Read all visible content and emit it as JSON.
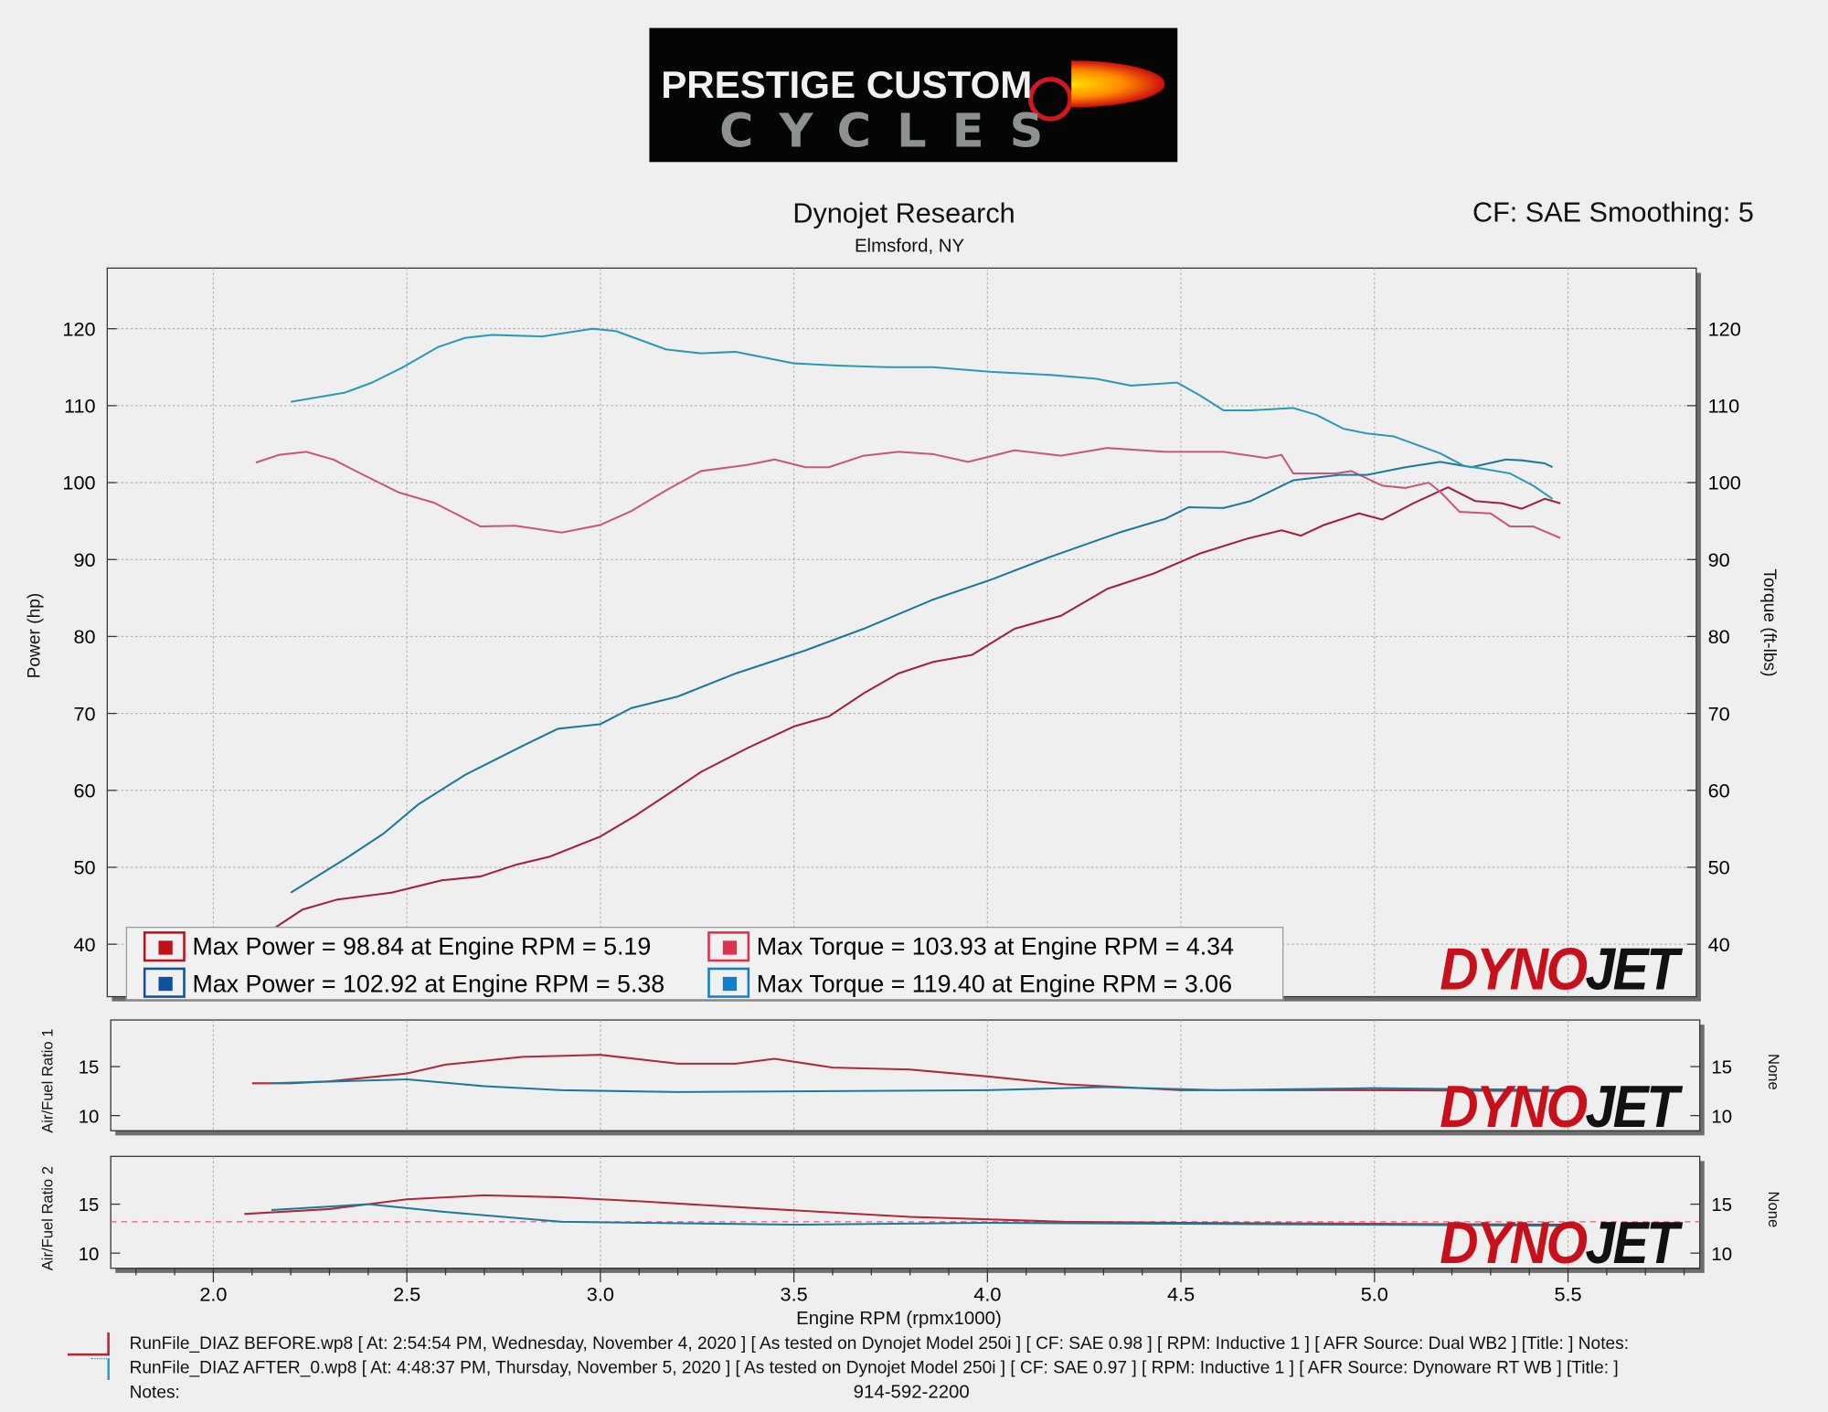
{
  "logo": {
    "line1": "PRESTIGE CUSTOM",
    "line2": "CYCLES"
  },
  "header": {
    "title": "Dynojet Research",
    "location": "Elmsford, NY",
    "cf": "CF: SAE Smoothing: 5"
  },
  "brand": {
    "d": "DYNO",
    "j": "JET",
    "mark": "®"
  },
  "colors": {
    "before_power": "#a3203c",
    "before_torque": "#c8587a",
    "after_power": "#1d7a96",
    "after_torque": "#2a9ab5",
    "grid": "#b8b8b8"
  },
  "legend": [
    {
      "text": "Max Power = 98.84 at Engine RPM = 5.19",
      "swatch": "#c0101a"
    },
    {
      "text": "Max Torque = 103.93 at Engine RPM = 4.34",
      "swatch": "#e03050"
    },
    {
      "text": "Max Power = 102.92 at Engine RPM = 5.38",
      "swatch": "#1050a0"
    },
    {
      "text": "Max Torque = 119.40 at Engine RPM = 3.06",
      "swatch": "#1080c8"
    }
  ],
  "footer": {
    "run1": "RunFile_DIAZ BEFORE.wp8 [ At: 2:54:54 PM, Wednesday, November 4, 2020 ] [ As tested on Dynojet Model 250i ] [ CF: SAE 0.98 ] [ RPM: Inductive 1 ] [ AFR Source: Dual WB2 ] [Title: ]  Notes:",
    "run2": "RunFile_DIAZ AFTER_0.wp8 [ At: 4:48:37 PM, Thursday, November 5, 2020 ] [ As tested on Dynojet Model 250i ] [ CF: SAE 0.97 ] [ RPM: Inductive 1 ] [ AFR Source: Dynoware RT WB ] [Title: ]",
    "notes": "Notes:",
    "phone": "914-592-2200"
  },
  "chart_data": [
    {
      "type": "line",
      "title": "Dynojet Research",
      "xlabel": "Engine RPM (rpmx1000)",
      "ylabel": "Power (hp)",
      "y2label": "Torque (ft-lbs)",
      "xlim": [
        1.73,
        5.83
      ],
      "ylim": [
        33.2,
        127.9
      ],
      "xticks": [
        "2.0",
        "2.5",
        "3.0",
        "3.5",
        "4.0",
        "4.5",
        "5.0",
        "5.5"
      ],
      "yticks": [
        "40",
        "50",
        "60",
        "70",
        "80",
        "90",
        "100",
        "110",
        "120"
      ],
      "grid": true,
      "legend_position": "bottom-left",
      "series": [
        {
          "name": "Before Power",
          "color": "#a3203c",
          "x": [
            2.1,
            2.14,
            2.23,
            2.32,
            2.46,
            2.59,
            2.69,
            2.78,
            2.87,
            3.0,
            3.09,
            3.18,
            3.26,
            3.38,
            3.5,
            3.59,
            3.68,
            3.77,
            3.86,
            3.96,
            4.07,
            4.19,
            4.31,
            4.43,
            4.55,
            4.67,
            4.76,
            4.81,
            4.87,
            4.96,
            5.02,
            5.1,
            5.19,
            5.26,
            5.33,
            5.38,
            5.44,
            5.48
          ],
          "y": [
            39.5,
            41.5,
            44.5,
            45.8,
            46.7,
            48.3,
            48.8,
            50.3,
            51.4,
            54,
            56.7,
            59.7,
            62.4,
            65.5,
            68.3,
            69.6,
            72.6,
            75.2,
            76.7,
            77.6,
            81,
            82.7,
            86.2,
            88.2,
            90.8,
            92.7,
            93.8,
            93.1,
            94.5,
            96,
            95.2,
            97.3,
            99.4,
            97.6,
            97.3,
            96.6,
            97.9,
            97.3
          ]
        },
        {
          "name": "Before Torque",
          "color": "#c8587a",
          "x": [
            2.11,
            2.17,
            2.24,
            2.31,
            2.38,
            2.48,
            2.57,
            2.69,
            2.78,
            2.9,
            3.0,
            3.08,
            3.17,
            3.26,
            3.38,
            3.45,
            3.53,
            3.59,
            3.68,
            3.77,
            3.86,
            3.95,
            4.07,
            4.19,
            4.31,
            4.46,
            4.61,
            4.72,
            4.76,
            4.79,
            4.9,
            4.94,
            5.02,
            5.08,
            5.14,
            5.17,
            5.22,
            5.3,
            5.35,
            5.41,
            5.48
          ],
          "y": [
            102.6,
            103.6,
            104,
            103,
            101.2,
            98.7,
            97.4,
            94.3,
            94.4,
            93.5,
            94.5,
            96.3,
            99,
            101.5,
            102.3,
            103,
            102,
            102,
            103.5,
            104,
            103.7,
            102.7,
            104.2,
            103.5,
            104.5,
            104,
            104,
            103.2,
            103.6,
            101.2,
            101.2,
            101.5,
            99.6,
            99.3,
            100,
            98.8,
            96.2,
            96,
            94.3,
            94.3,
            92.8
          ]
        },
        {
          "name": "After Power",
          "color": "#1d7a96",
          "x": [
            2.2,
            2.35,
            2.44,
            2.53,
            2.65,
            2.8,
            2.89,
            3.0,
            3.08,
            3.2,
            3.35,
            3.53,
            3.68,
            3.86,
            4.01,
            4.16,
            4.34,
            4.46,
            4.52,
            4.61,
            4.68,
            4.79,
            4.91,
            4.98,
            5.08,
            5.17,
            5.25,
            5.34,
            5.38,
            5.44,
            5.46
          ],
          "y": [
            46.7,
            51.4,
            54.4,
            58.2,
            62,
            65.8,
            68,
            68.6,
            70.7,
            72.2,
            75.2,
            78.2,
            81,
            84.8,
            87.4,
            90.3,
            93.5,
            95.3,
            96.8,
            96.7,
            97.6,
            100.3,
            101,
            101,
            102,
            102.7,
            102,
            103,
            102.9,
            102.5,
            102
          ]
        },
        {
          "name": "After Torque",
          "color": "#2a9ab5",
          "x": [
            2.2,
            2.34,
            2.41,
            2.49,
            2.58,
            2.65,
            2.72,
            2.85,
            2.98,
            3.04,
            3.17,
            3.26,
            3.35,
            3.5,
            3.62,
            3.74,
            3.86,
            4.01,
            4.16,
            4.28,
            4.37,
            4.49,
            4.55,
            4.61,
            4.68,
            4.79,
            4.85,
            4.92,
            4.98,
            5.05,
            5.17,
            5.23,
            5.28,
            5.35,
            5.41,
            5.46
          ],
          "y": [
            110.5,
            111.7,
            113,
            115,
            117.6,
            118.8,
            119.2,
            119,
            120,
            119.7,
            117.3,
            116.8,
            117,
            115.5,
            115.2,
            115,
            115,
            114.4,
            114,
            113.5,
            112.6,
            113,
            111.3,
            109.4,
            109.4,
            109.7,
            108.8,
            107,
            106.4,
            106,
            103.8,
            102.2,
            101.8,
            101.2,
            99.6,
            97.9
          ]
        }
      ]
    },
    {
      "type": "line",
      "ylabel": "Air/Fuel Ratio 1",
      "y2label": "None",
      "ylim": [
        8,
        19.5
      ],
      "yticks": [
        "10",
        "15"
      ],
      "series": [
        {
          "name": "Before AFR1",
          "color": "#b0283c",
          "x": [
            2.1,
            2.2,
            2.3,
            2.5,
            2.6,
            2.8,
            3.0,
            3.2,
            3.35,
            3.45,
            3.6,
            3.8,
            4.0,
            4.2,
            4.5,
            5.0,
            5.5
          ],
          "y": [
            13.3,
            13.3,
            13.5,
            14.3,
            15.2,
            16,
            16.2,
            15.3,
            15.3,
            15.8,
            14.9,
            14.7,
            14,
            13.2,
            12.6,
            12.6,
            12.5
          ]
        },
        {
          "name": "After AFR1",
          "color": "#1d7a96",
          "x": [
            2.15,
            2.5,
            2.7,
            2.9,
            3.2,
            3.6,
            4.0,
            4.3,
            4.6,
            5.0,
            5.5
          ],
          "y": [
            13.3,
            13.7,
            13,
            12.6,
            12.4,
            12.5,
            12.6,
            12.9,
            12.6,
            12.8,
            12.6
          ]
        }
      ]
    },
    {
      "type": "line",
      "ylabel": "Air/Fuel Ratio 2",
      "y2label": "None",
      "ylim": [
        8,
        19.5
      ],
      "yticks": [
        "10",
        "15"
      ],
      "series": [
        {
          "name": "Before AFR2",
          "color": "#b0283c",
          "x": [
            2.08,
            2.3,
            2.5,
            2.7,
            2.9,
            3.1,
            3.4,
            3.8,
            4.2,
            4.5,
            5.0,
            5.5
          ],
          "y": [
            14,
            14.5,
            15.5,
            15.9,
            15.7,
            15.3,
            14.6,
            13.7,
            13.2,
            13.1,
            13,
            12.9
          ]
        },
        {
          "name": "After AFR2",
          "color": "#1d7a96",
          "x": [
            2.15,
            2.4,
            2.6,
            2.9,
            3.5,
            4.0,
            4.5,
            5.5
          ],
          "y": [
            14.4,
            15,
            14.2,
            13.2,
            12.9,
            13.1,
            13,
            12.8
          ]
        }
      ],
      "reference_line": 13.2
    }
  ]
}
